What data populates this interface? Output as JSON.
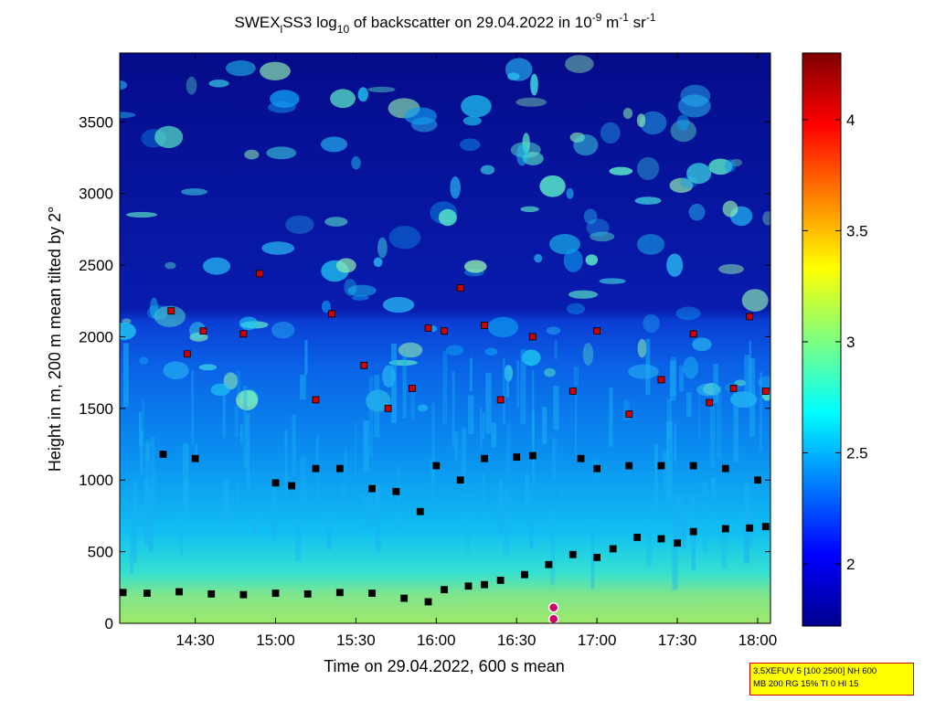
{
  "chart_data": {
    "type": "heatmap",
    "title": {
      "prefix": "SWEX",
      "sub1": "l",
      "mid": "SS3 log",
      "sub2": "10",
      "mid2": " of backscatter on 29.04.2022 in 10",
      "sup1": "-9",
      "mid3": " m",
      "sup2": "-1",
      "mid4": " sr",
      "sup3": "-1"
    },
    "xlabel": "Time on 29.04.2022, 600 s mean",
    "ylabel": "Height in m, 200 m mean tilted by 2°",
    "x_ticks": [
      "14:30",
      "15:00",
      "15:30",
      "16:00",
      "16:30",
      "17:00",
      "17:30",
      "18:00"
    ],
    "x_tick_hours": [
      14.5,
      15.0,
      15.5,
      16.0,
      16.5,
      17.0,
      17.5,
      18.0
    ],
    "xlim_hours": [
      14.03,
      18.08
    ],
    "y_ticks": [
      "0",
      "500",
      "1000",
      "1500",
      "2000",
      "2500",
      "3000",
      "3500"
    ],
    "y_tick_values": [
      0,
      500,
      1000,
      1500,
      2000,
      2500,
      3000,
      3500
    ],
    "ylim": [
      0,
      3980
    ],
    "colorbar": {
      "ticks": [
        "2",
        "2.5",
        "3",
        "3.5",
        "4"
      ],
      "tick_values": [
        2,
        2.5,
        3,
        3.5,
        4
      ],
      "range": [
        1.72,
        4.3
      ],
      "colormap": "jet"
    },
    "layers": [
      {
        "name": "boundary layer (black markers)",
        "color": "#000000",
        "points": [
          [
            14.05,
            215
          ],
          [
            14.2,
            210
          ],
          [
            14.4,
            220
          ],
          [
            14.6,
            205
          ],
          [
            14.8,
            200
          ],
          [
            15.0,
            210
          ],
          [
            15.2,
            205
          ],
          [
            15.4,
            215
          ],
          [
            15.6,
            210
          ],
          [
            15.8,
            175
          ],
          [
            15.95,
            150
          ],
          [
            16.05,
            235
          ],
          [
            16.2,
            260
          ],
          [
            16.3,
            270
          ],
          [
            16.4,
            300
          ],
          [
            16.55,
            340
          ],
          [
            16.7,
            410
          ],
          [
            16.85,
            480
          ],
          [
            17.0,
            460
          ],
          [
            17.1,
            520
          ],
          [
            17.25,
            600
          ],
          [
            17.4,
            590
          ],
          [
            17.5,
            560
          ],
          [
            17.6,
            640
          ],
          [
            17.8,
            660
          ],
          [
            17.95,
            665
          ],
          [
            18.05,
            675
          ]
        ]
      },
      {
        "name": "marker layer ~1000-1200 m",
        "color": "#000000",
        "points": [
          [
            14.3,
            1180
          ],
          [
            14.5,
            1150
          ],
          [
            15.0,
            980
          ],
          [
            15.1,
            960
          ],
          [
            15.25,
            1080
          ],
          [
            15.4,
            1080
          ],
          [
            15.6,
            940
          ],
          [
            15.75,
            920
          ],
          [
            15.9,
            780
          ],
          [
            16.0,
            1100
          ],
          [
            16.15,
            1000
          ],
          [
            16.3,
            1150
          ],
          [
            16.5,
            1160
          ],
          [
            16.6,
            1170
          ],
          [
            16.9,
            1150
          ],
          [
            17.0,
            1080
          ],
          [
            17.2,
            1100
          ],
          [
            17.4,
            1100
          ],
          [
            17.6,
            1100
          ],
          [
            17.8,
            1080
          ],
          [
            18.0,
            1000
          ]
        ]
      },
      {
        "name": "marker layer ~1500-2200 m",
        "color": "#cc0000",
        "points": [
          [
            14.35,
            2180
          ],
          [
            14.45,
            1880
          ],
          [
            14.55,
            2040
          ],
          [
            14.8,
            2020
          ],
          [
            14.9,
            2440
          ],
          [
            15.25,
            1560
          ],
          [
            15.35,
            2160
          ],
          [
            15.55,
            1800
          ],
          [
            15.7,
            1500
          ],
          [
            15.85,
            1640
          ],
          [
            15.95,
            2060
          ],
          [
            16.05,
            2040
          ],
          [
            16.15,
            2340
          ],
          [
            16.3,
            2080
          ],
          [
            16.4,
            1560
          ],
          [
            16.6,
            2000
          ],
          [
            16.85,
            1620
          ],
          [
            17.0,
            2040
          ],
          [
            17.2,
            1460
          ],
          [
            17.4,
            1700
          ],
          [
            17.6,
            2020
          ],
          [
            17.7,
            1540
          ],
          [
            17.85,
            1640
          ],
          [
            17.95,
            2140
          ],
          [
            18.05,
            1620
          ]
        ]
      }
    ],
    "special_markers": [
      {
        "x": 16.73,
        "y": 110,
        "color": "#cc0066"
      },
      {
        "x": 16.73,
        "y": 30,
        "color": "#cc0066"
      }
    ]
  },
  "info_box": {
    "line1": "3.5XEFUV 5 [100 2500] NH 600",
    "line2": "MB 200 RG 15% TI 0 HI 15"
  }
}
